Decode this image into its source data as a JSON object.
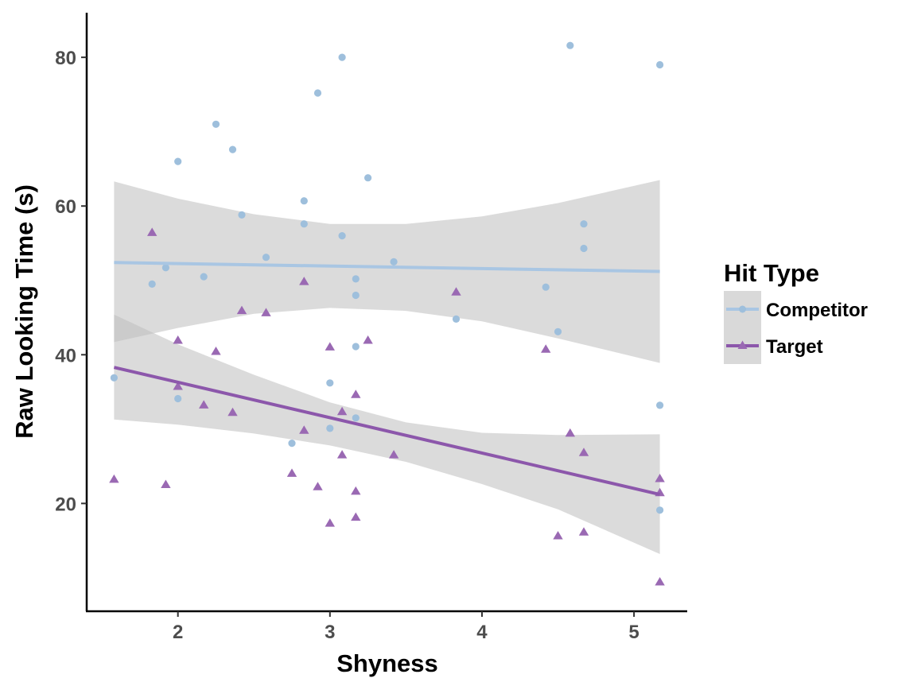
{
  "chart_data": {
    "type": "scatter",
    "xlabel": "Shyness",
    "ylabel": "Raw Looking Time (s)",
    "xlim": [
      1.4,
      5.35
    ],
    "ylim": [
      5.5,
      86
    ],
    "x_ticks": [
      {
        "value": 2,
        "label": "2"
      },
      {
        "value": 3,
        "label": "3"
      },
      {
        "value": 4,
        "label": "4"
      },
      {
        "value": 5,
        "label": "5"
      }
    ],
    "y_ticks": [
      {
        "value": 20,
        "label": "20"
      },
      {
        "value": 40,
        "label": "40"
      },
      {
        "value": 60,
        "label": "60"
      },
      {
        "value": 80,
        "label": "80"
      }
    ],
    "grid": false,
    "legend": {
      "title": "Hit Type",
      "position": "right",
      "entries": [
        "Competitor",
        "Target"
      ]
    },
    "series": [
      {
        "name": "Competitor",
        "marker": "circle",
        "color": "#9ebfdc",
        "line_color": "#a9c6e3",
        "points": [
          {
            "x": 1.58,
            "y": 36.9
          },
          {
            "x": 1.83,
            "y": 49.5
          },
          {
            "x": 1.92,
            "y": 51.7
          },
          {
            "x": 2.0,
            "y": 66.0
          },
          {
            "x": 2.0,
            "y": 34.1
          },
          {
            "x": 2.17,
            "y": 50.5
          },
          {
            "x": 2.25,
            "y": 71.0
          },
          {
            "x": 2.36,
            "y": 67.6
          },
          {
            "x": 2.42,
            "y": 58.8
          },
          {
            "x": 2.58,
            "y": 53.1
          },
          {
            "x": 2.75,
            "y": 28.1
          },
          {
            "x": 2.83,
            "y": 60.7
          },
          {
            "x": 2.83,
            "y": 57.6
          },
          {
            "x": 2.92,
            "y": 75.2
          },
          {
            "x": 3.0,
            "y": 36.2
          },
          {
            "x": 3.0,
            "y": 30.1
          },
          {
            "x": 3.08,
            "y": 80.0
          },
          {
            "x": 3.08,
            "y": 56.0
          },
          {
            "x": 3.17,
            "y": 50.2
          },
          {
            "x": 3.17,
            "y": 48.0
          },
          {
            "x": 3.17,
            "y": 41.1
          },
          {
            "x": 3.17,
            "y": 31.5
          },
          {
            "x": 3.25,
            "y": 63.8
          },
          {
            "x": 3.42,
            "y": 52.5
          },
          {
            "x": 3.83,
            "y": 44.8
          },
          {
            "x": 4.42,
            "y": 49.1
          },
          {
            "x": 4.5,
            "y": 43.1
          },
          {
            "x": 4.58,
            "y": 81.6
          },
          {
            "x": 4.67,
            "y": 57.6
          },
          {
            "x": 4.67,
            "y": 54.3
          },
          {
            "x": 5.17,
            "y": 79.0
          },
          {
            "x": 5.17,
            "y": 33.2
          },
          {
            "x": 5.17,
            "y": 19.1
          }
        ],
        "fit": {
          "x": [
            1.58,
            5.17
          ],
          "y": [
            52.4,
            51.2
          ]
        },
        "band": {
          "x": [
            1.58,
            2.0,
            2.5,
            3.0,
            3.5,
            4.0,
            4.5,
            5.17
          ],
          "lower": [
            41.7,
            43.6,
            45.5,
            46.3,
            45.9,
            44.5,
            42.2,
            38.9
          ],
          "upper": [
            63.3,
            61.0,
            58.9,
            57.6,
            57.6,
            58.6,
            60.4,
            63.5
          ]
        }
      },
      {
        "name": "Target",
        "marker": "triangle",
        "color": "#9a69b3",
        "line_color": "#8c57ab",
        "points": [
          {
            "x": 1.58,
            "y": 23.2
          },
          {
            "x": 1.83,
            "y": 56.4
          },
          {
            "x": 1.92,
            "y": 22.5
          },
          {
            "x": 2.0,
            "y": 41.9
          },
          {
            "x": 2.0,
            "y": 35.7
          },
          {
            "x": 2.17,
            "y": 33.2
          },
          {
            "x": 2.25,
            "y": 40.4
          },
          {
            "x": 2.36,
            "y": 32.2
          },
          {
            "x": 2.42,
            "y": 45.9
          },
          {
            "x": 2.58,
            "y": 45.6
          },
          {
            "x": 2.75,
            "y": 24.0
          },
          {
            "x": 2.83,
            "y": 49.8
          },
          {
            "x": 2.83,
            "y": 29.8
          },
          {
            "x": 2.92,
            "y": 22.2
          },
          {
            "x": 3.0,
            "y": 41.0
          },
          {
            "x": 3.0,
            "y": 17.3
          },
          {
            "x": 3.08,
            "y": 32.3
          },
          {
            "x": 3.08,
            "y": 26.5
          },
          {
            "x": 3.17,
            "y": 34.6
          },
          {
            "x": 3.17,
            "y": 21.6
          },
          {
            "x": 3.17,
            "y": 18.1
          },
          {
            "x": 3.25,
            "y": 41.9
          },
          {
            "x": 3.42,
            "y": 26.5
          },
          {
            "x": 3.83,
            "y": 48.4
          },
          {
            "x": 4.42,
            "y": 40.7
          },
          {
            "x": 4.5,
            "y": 15.6
          },
          {
            "x": 4.58,
            "y": 29.4
          },
          {
            "x": 4.67,
            "y": 26.8
          },
          {
            "x": 4.67,
            "y": 16.1
          },
          {
            "x": 5.17,
            "y": 23.3
          },
          {
            "x": 5.17,
            "y": 21.4
          },
          {
            "x": 5.17,
            "y": 9.4
          }
        ],
        "fit": {
          "x": [
            1.58,
            5.17
          ],
          "y": [
            38.3,
            21.2
          ]
        },
        "band": {
          "x": [
            1.58,
            2.0,
            2.5,
            3.0,
            3.5,
            4.0,
            4.5,
            5.17
          ],
          "lower": [
            31.3,
            30.6,
            29.4,
            27.8,
            25.6,
            22.6,
            19.2,
            13.2
          ],
          "upper": [
            45.4,
            41.4,
            37.3,
            33.6,
            30.9,
            29.5,
            29.2,
            29.3
          ]
        }
      }
    ]
  }
}
